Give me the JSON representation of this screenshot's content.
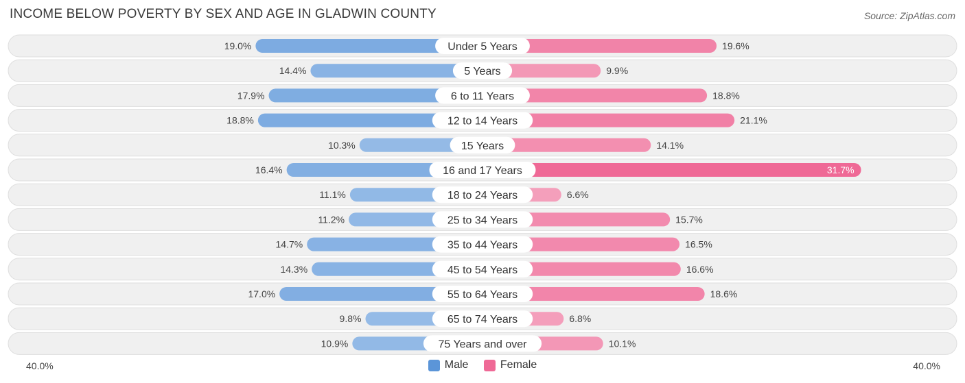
{
  "title": "INCOME BELOW POVERTY BY SEX AND AGE IN GLADWIN COUNTY",
  "source": "Source: ZipAtlas.com",
  "colors": {
    "male_dark": "#5b95d8",
    "male_light": "#a9c8ec",
    "female_dark": "#ef6996",
    "female_light": "#f5a8c2",
    "row_bg": "#f0f0f0",
    "row_border": "#dedede"
  },
  "chart_data": {
    "type": "bar",
    "orientation": "horizontal-diverging",
    "title": "INCOME BELOW POVERTY BY SEX AND AGE IN GLADWIN COUNTY",
    "categories": [
      "Under 5 Years",
      "5 Years",
      "6 to 11 Years",
      "12 to 14 Years",
      "15 Years",
      "16 and 17 Years",
      "18 to 24 Years",
      "25 to 34 Years",
      "35 to 44 Years",
      "45 to 54 Years",
      "55 to 64 Years",
      "65 to 74 Years",
      "75 Years and over"
    ],
    "series": [
      {
        "name": "Male",
        "values": [
          19.0,
          14.4,
          17.9,
          18.8,
          10.3,
          16.4,
          11.1,
          11.2,
          14.7,
          14.3,
          17.0,
          9.8,
          10.9
        ],
        "labels": [
          "19.0%",
          "14.4%",
          "17.9%",
          "18.8%",
          "10.3%",
          "16.4%",
          "11.1%",
          "11.2%",
          "14.7%",
          "14.3%",
          "17.0%",
          "9.8%",
          "10.9%"
        ]
      },
      {
        "name": "Female",
        "values": [
          19.6,
          9.9,
          18.8,
          21.1,
          14.1,
          31.7,
          6.6,
          15.7,
          16.5,
          16.6,
          18.6,
          6.8,
          10.1
        ],
        "labels": [
          "19.6%",
          "9.9%",
          "18.8%",
          "21.1%",
          "14.1%",
          "31.7%",
          "6.6%",
          "15.7%",
          "16.5%",
          "16.6%",
          "18.6%",
          "6.8%",
          "10.1%"
        ]
      }
    ],
    "xlim": [
      -40,
      40
    ],
    "axis_labels": {
      "left": "40.0%",
      "right": "40.0%"
    },
    "legend": [
      "Male",
      "Female"
    ],
    "legend_position": "bottom-center"
  }
}
